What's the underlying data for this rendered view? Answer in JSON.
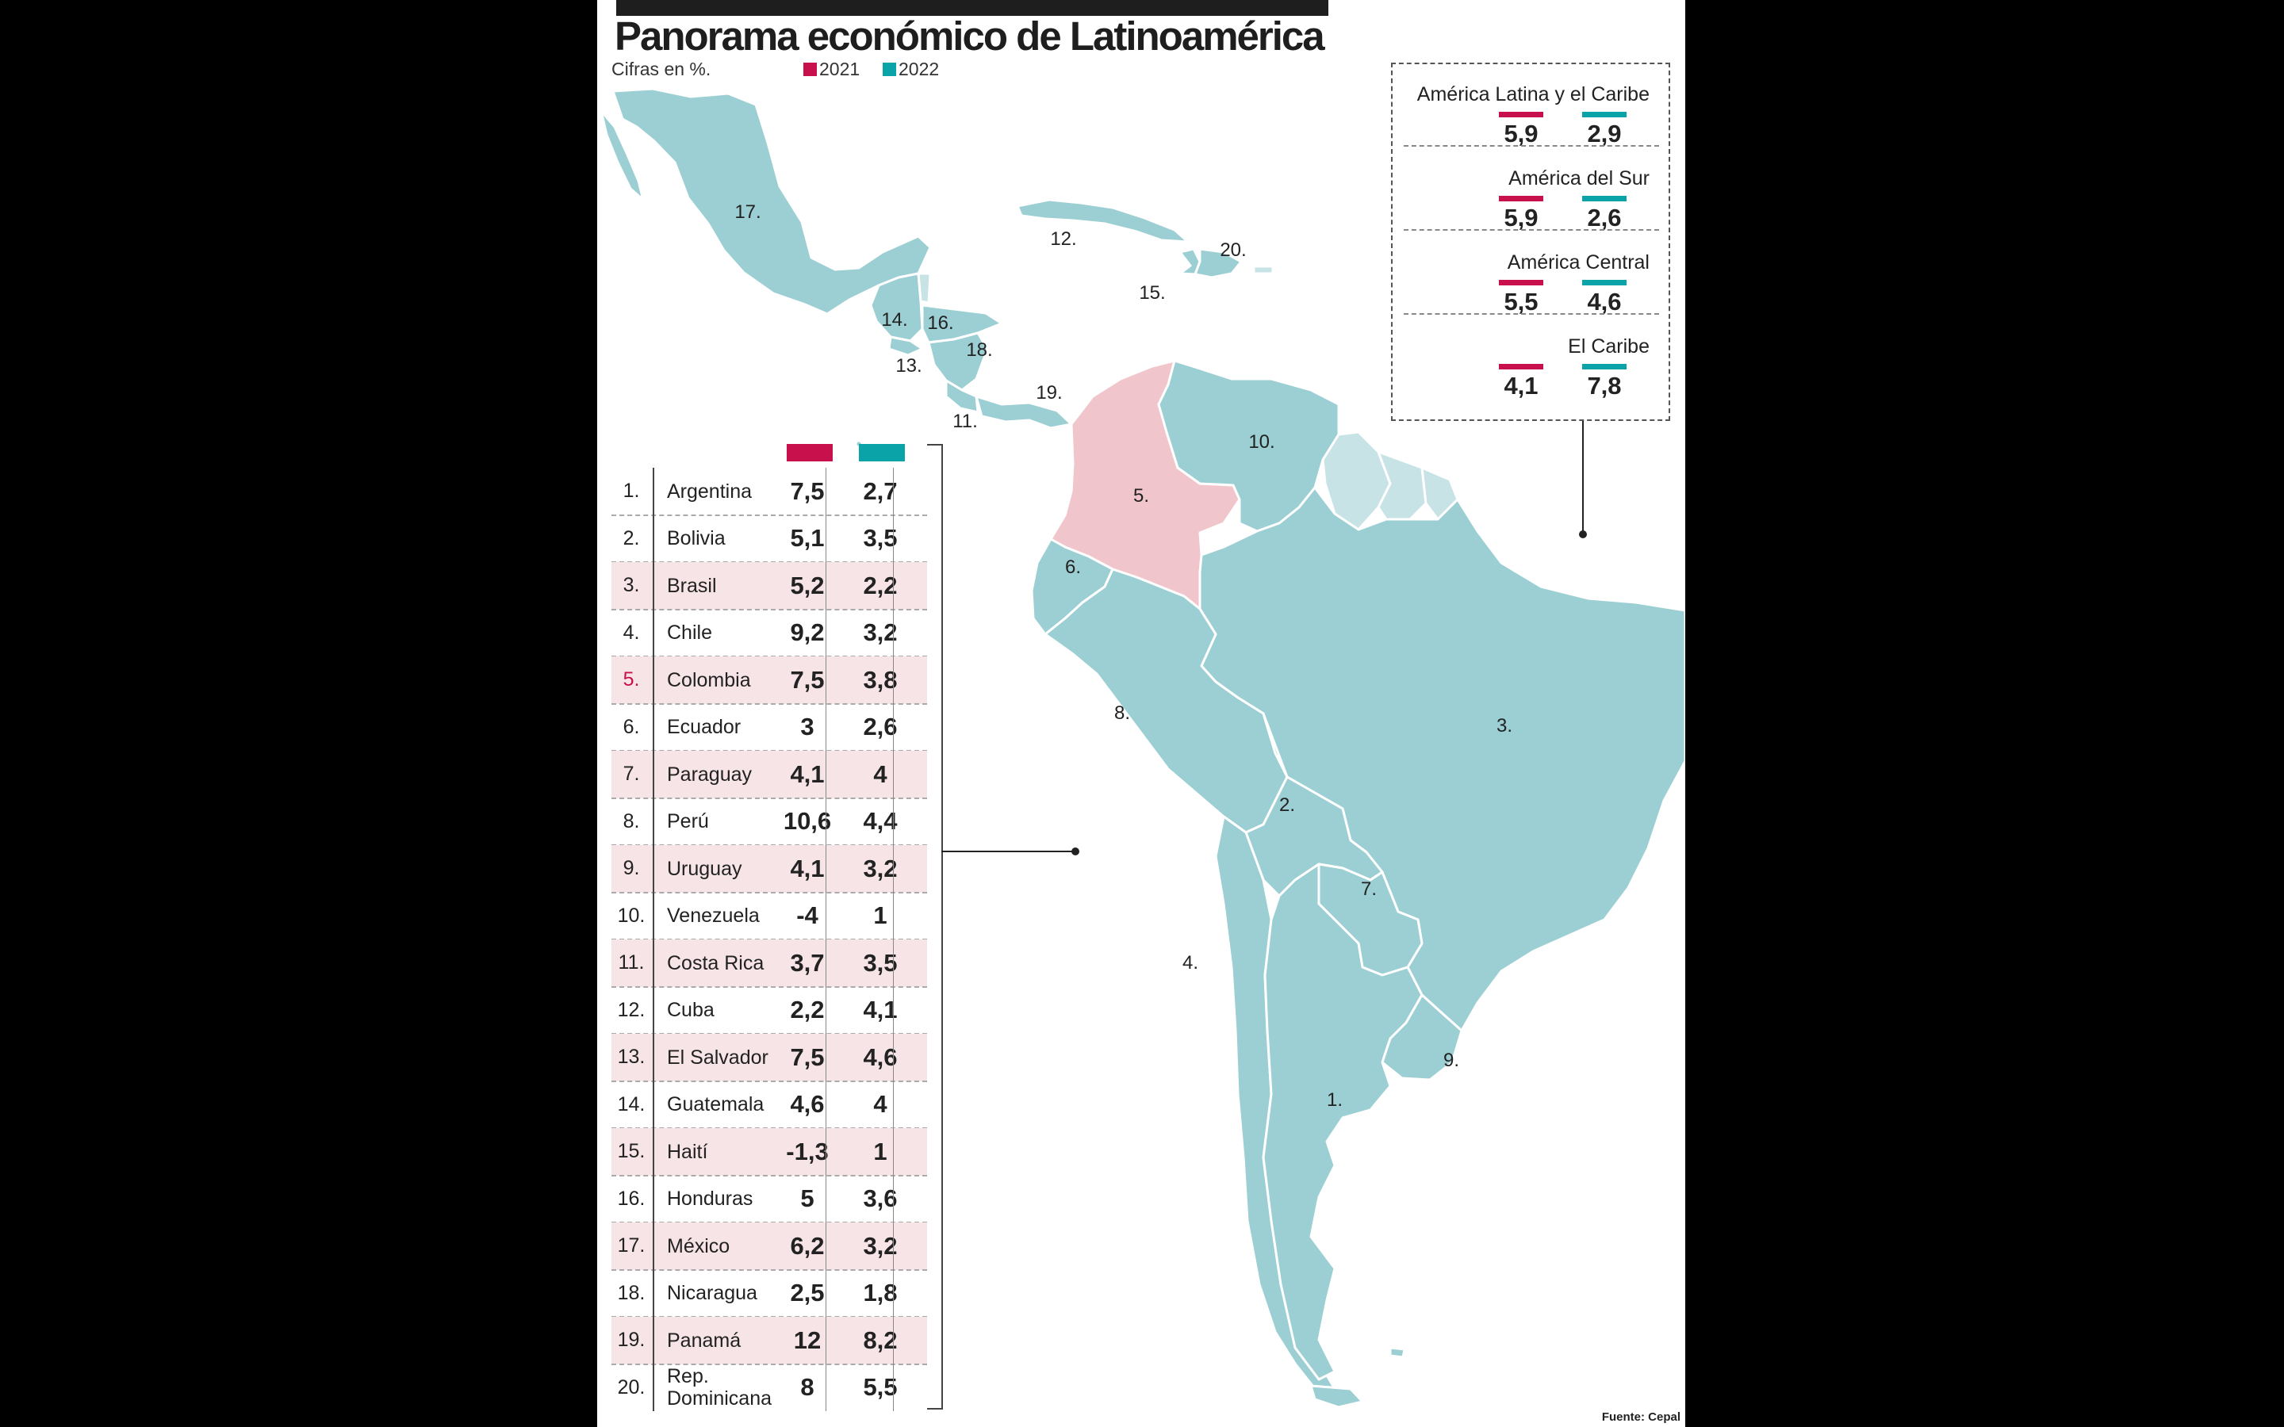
{
  "title": "Panorama económico de Latinoamérica",
  "subtitle": "Cifras en %.",
  "colors": {
    "y2021": "#c8104d",
    "y2022": "#0aa3a8",
    "land": "#9ccfd3",
    "colombia": "#f0c5cc",
    "guianas": "#c8e3e6"
  },
  "chart_data": {
    "type": "table",
    "legend": [
      {
        "name": "2021",
        "color": "#c8104d"
      },
      {
        "name": "2022",
        "color": "#0aa3a8"
      }
    ],
    "regions": [
      {
        "name": "América Latina y el Caribe",
        "v2021": "5,9",
        "v2022": "2,9"
      },
      {
        "name": "América del Sur",
        "v2021": "5,9",
        "v2022": "2,6"
      },
      {
        "name": "América Central",
        "v2021": "5,5",
        "v2022": "4,6"
      },
      {
        "name": "El Caribe",
        "v2021": "4,1",
        "v2022": "7,8"
      }
    ],
    "countries": [
      {
        "num": "1.",
        "name": "Argentina",
        "v2021": "7,5",
        "v2022": "2,7"
      },
      {
        "num": "2.",
        "name": "Bolivia",
        "v2021": "5,1",
        "v2022": "3,5"
      },
      {
        "num": "3.",
        "name": "Brasil",
        "v2021": "5,2",
        "v2022": "2,2"
      },
      {
        "num": "4.",
        "name": "Chile",
        "v2021": "9,2",
        "v2022": "3,2"
      },
      {
        "num": "5.",
        "name": "Colombia",
        "v2021": "7,5",
        "v2022": "3,8"
      },
      {
        "num": "6.",
        "name": "Ecuador",
        "v2021": "3",
        "v2022": "2,6"
      },
      {
        "num": "7.",
        "name": "Paraguay",
        "v2021": "4,1",
        "v2022": "4"
      },
      {
        "num": "8.",
        "name": "Perú",
        "v2021": "10,6",
        "v2022": "4,4"
      },
      {
        "num": "9.",
        "name": "Uruguay",
        "v2021": "4,1",
        "v2022": "3,2"
      },
      {
        "num": "10.",
        "name": "Venezuela",
        "v2021": "-4",
        "v2022": "1"
      },
      {
        "num": "11.",
        "name": "Costa Rica",
        "v2021": "3,7",
        "v2022": "3,5"
      },
      {
        "num": "12.",
        "name": "Cuba",
        "v2021": "2,2",
        "v2022": "4,1"
      },
      {
        "num": "13.",
        "name": "El Salvador",
        "v2021": "7,5",
        "v2022": "4,6"
      },
      {
        "num": "14.",
        "name": "Guatemala",
        "v2021": "4,6",
        "v2022": "4"
      },
      {
        "num": "15.",
        "name": "Haití",
        "v2021": "-1,3",
        "v2022": "1"
      },
      {
        "num": "16.",
        "name": "Honduras",
        "v2021": "5",
        "v2022": "3,6"
      },
      {
        "num": "17.",
        "name": "México",
        "v2021": "6,2",
        "v2022": "3,2"
      },
      {
        "num": "18.",
        "name": "Nicaragua",
        "v2021": "2,5",
        "v2022": "1,8"
      },
      {
        "num": "19.",
        "name": "Panamá",
        "v2021": "12",
        "v2022": "8,2"
      },
      {
        "num": "20.",
        "name": "Rep. Dominicana",
        "v2021": "8",
        "v2022": "5,5"
      }
    ]
  },
  "map_labels": [
    "17.",
    "12.",
    "20.",
    "15.",
    "14.",
    "16.",
    "18.",
    "13.",
    "19.",
    "11.",
    "10.",
    "5.",
    "6.",
    "8.",
    "3.",
    "2.",
    "7.",
    "4.",
    "9.",
    "1."
  ],
  "source": "Fuente: Cepal"
}
